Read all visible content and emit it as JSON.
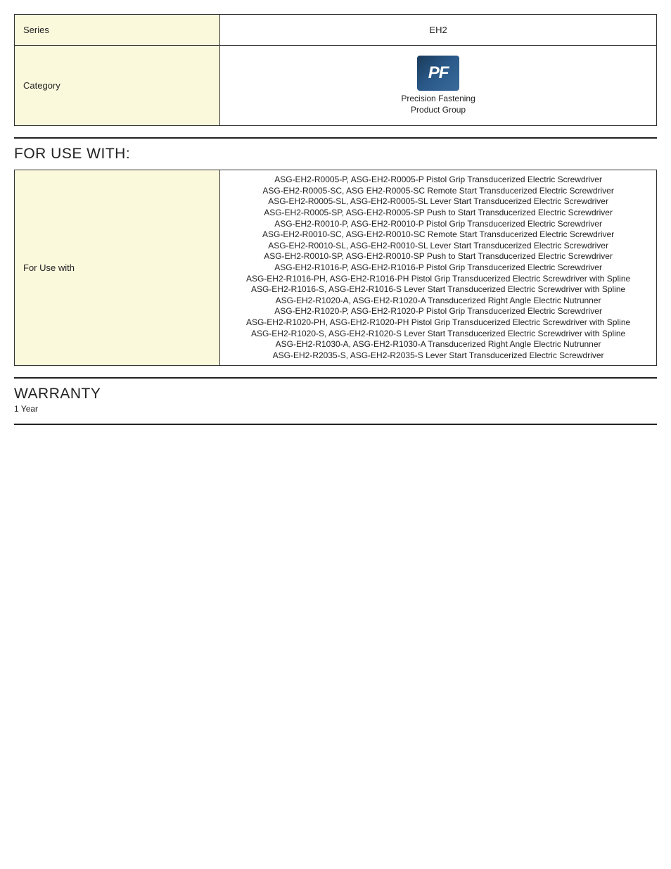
{
  "info_table": {
    "rows": [
      {
        "label": "Series",
        "value": "EH2"
      }
    ],
    "category_row": {
      "label": "Category",
      "icon_text": "PF",
      "caption_line1": "Precision Fastening",
      "caption_line2": "Product Group"
    }
  },
  "for_use": {
    "heading": "FOR USE WITH:",
    "row_label": "For Use with",
    "lines": [
      "ASG-EH2-R0005-P, ASG-EH2-R0005-P Pistol Grip Transducerized Electric Screwdriver",
      "ASG-EH2-R0005-SC, ASG EH2-R0005-SC Remote Start Transducerized Electric Screwdriver",
      "ASG-EH2-R0005-SL, ASG-EH2-R0005-SL Lever Start Transducerized Electric Screwdriver",
      "ASG-EH2-R0005-SP, ASG-EH2-R0005-SP Push to Start Transducerized Electric Screwdriver",
      "ASG-EH2-R0010-P, ASG-EH2-R0010-P Pistol Grip Transducerized Electric Screwdriver",
      "ASG-EH2-R0010-SC, ASG-EH2-R0010-SC Remote Start Transducerized Electric Screwdriver",
      "ASG-EH2-R0010-SL, ASG-EH2-R0010-SL Lever Start Transducerized Electric Screwdriver",
      "ASG-EH2-R0010-SP, ASG-EH2-R0010-SP Push to Start Transducerized Electric Screwdriver",
      "ASG-EH2-R1016-P, ASG-EH2-R1016-P Pistol Grip Transducerized Electric Screwdriver",
      "ASG-EH2-R1016-PH, ASG-EH2-R1016-PH Pistol Grip Transducerized Electric Screwdriver with Spline",
      "ASG-EH2-R1016-S, ASG-EH2-R1016-S Lever Start Transducerized Electric Screwdriver with Spline",
      "ASG-EH2-R1020-A, ASG-EH2-R1020-A Transducerized Right Angle Electric Nutrunner",
      "ASG-EH2-R1020-P, ASG-EH2-R1020-P Pistol Grip Transducerized Electric Screwdriver",
      "ASG-EH2-R1020-PH, ASG-EH2-R1020-PH Pistol Grip Transducerized Electric Screwdriver with Spline",
      "ASG-EH2-R1020-S, ASG-EH2-R1020-S Lever Start Transducerized Electric Screwdriver with Spline",
      "ASG-EH2-R1030-A, ASG-EH2-R1030-A Transducerized Right Angle Electric Nutrunner",
      "ASG-EH2-R2035-S, ASG-EH2-R2035-S Lever Start Transducerized Electric Screwdriver"
    ]
  },
  "warranty": {
    "heading": "WARRANTY",
    "text": "1 Year"
  },
  "colors": {
    "label_bg": "#fbf9dc",
    "border": "#333333",
    "divider": "#222222",
    "pf_icon_bg_start": "#1a3a5a",
    "pf_icon_bg_end": "#3a6a9a",
    "text": "#222222",
    "page_bg": "#ffffff"
  }
}
